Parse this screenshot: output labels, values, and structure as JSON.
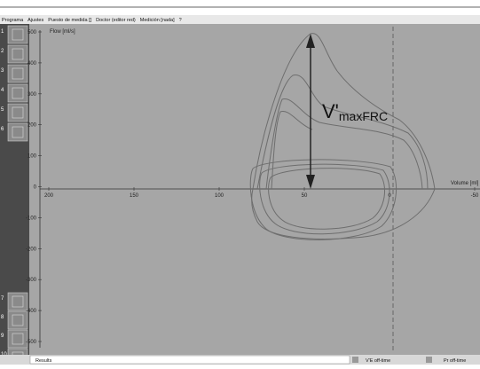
{
  "menu": [
    "Programa",
    "Ajustes",
    "Puesto de medida []",
    "Doctor (editor red)",
    "Medición [nada]",
    "?"
  ],
  "toolbar_top": [
    "1",
    "2",
    "3",
    "4",
    "5",
    "6"
  ],
  "toolbar_bottom": [
    "7",
    "8",
    "9",
    "10"
  ],
  "plot": {
    "y_axis_label": "Flow [ml/s]",
    "x_axis_label": "Volume [ml]",
    "y_ticks": [
      500,
      400,
      300,
      200,
      100,
      0,
      -100,
      -200,
      -300,
      -400,
      -500
    ],
    "x_ticks": [
      200,
      150,
      100,
      50,
      0,
      -50
    ],
    "annotation": {
      "main": "V'",
      "sub": "maxFRC"
    }
  },
  "status": {
    "left": "Results",
    "item1": "V'E off-time",
    "item2": "Pr off-time"
  }
}
